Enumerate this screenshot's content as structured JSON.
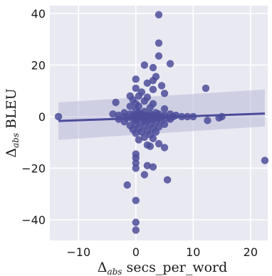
{
  "chart_data": {
    "type": "scatter",
    "xlabel_symbol": "Δ",
    "xlabel_sub": "abs",
    "xlabel": "secs_per_word",
    "ylabel_symbol": "Δ",
    "ylabel_sub": "abs",
    "ylabel": "BLEU",
    "xlim": [
      -15,
      23
    ],
    "ylim": [
      -48,
      43
    ],
    "xticks": [
      -10,
      0,
      10,
      20
    ],
    "xtick_labels": [
      "−10",
      "0",
      "10",
      "20"
    ],
    "yticks": [
      -40,
      -20,
      0,
      20,
      40
    ],
    "ytick_labels": [
      "−40",
      "−20",
      "0",
      "20",
      "40"
    ],
    "grid": true,
    "colors": {
      "point": "#4c4c9a",
      "line": "#4c4c9a",
      "band": "#b9b9d8",
      "plot_bg": "#e9e9f2",
      "grid": "#ffffff"
    },
    "regression": {
      "x": [
        -13.5,
        22.5
      ],
      "y": [
        -1.7,
        1.2
      ],
      "ci_lower": [
        -9.0,
        -3.8
      ],
      "ci_upper": [
        5.5,
        10.5
      ]
    },
    "points": [
      {
        "x": 4.0,
        "y": 39.5
      },
      {
        "x": 4.0,
        "y": 28.5
      },
      {
        "x": 4.0,
        "y": 23.5
      },
      {
        "x": 6.0,
        "y": 20.5
      },
      {
        "x": 1.5,
        "y": 20.0
      },
      {
        "x": 3.0,
        "y": 19.0
      },
      {
        "x": 3.5,
        "y": 15.5
      },
      {
        "x": 0.0,
        "y": 14.5
      },
      {
        "x": 3.0,
        "y": 14.0
      },
      {
        "x": 2.0,
        "y": 13.0
      },
      {
        "x": 4.5,
        "y": 12.0
      },
      {
        "x": 0.0,
        "y": 11.0
      },
      {
        "x": 12.2,
        "y": 11.0
      },
      {
        "x": 3.0,
        "y": 10.5
      },
      {
        "x": 1.0,
        "y": 9.5
      },
      {
        "x": 5.0,
        "y": 9.0
      },
      {
        "x": -1.0,
        "y": 8.0
      },
      {
        "x": 0.5,
        "y": 8.0
      },
      {
        "x": 2.0,
        "y": 7.5
      },
      {
        "x": -0.5,
        "y": 6.5
      },
      {
        "x": 1.5,
        "y": 6.0
      },
      {
        "x": -3.5,
        "y": 5.5
      },
      {
        "x": 0.0,
        "y": 5.0
      },
      {
        "x": 3.0,
        "y": 5.0
      },
      {
        "x": -1.0,
        "y": 4.0
      },
      {
        "x": 0.5,
        "y": 4.0
      },
      {
        "x": 2.5,
        "y": 3.5
      },
      {
        "x": 5.0,
        "y": 3.0
      },
      {
        "x": 0.0,
        "y": 2.5
      },
      {
        "x": 1.5,
        "y": 2.0
      },
      {
        "x": -2.0,
        "y": 1.5
      },
      {
        "x": 0.5,
        "y": 1.5
      },
      {
        "x": 3.5,
        "y": 1.5
      },
      {
        "x": -4.0,
        "y": 1.0
      },
      {
        "x": -1.0,
        "y": 1.0
      },
      {
        "x": 1.0,
        "y": 1.0
      },
      {
        "x": 2.5,
        "y": 1.0
      },
      {
        "x": 4.0,
        "y": 1.0
      },
      {
        "x": 6.0,
        "y": 1.0
      },
      {
        "x": -3.0,
        "y": 0.5
      },
      {
        "x": -0.5,
        "y": 0.5
      },
      {
        "x": 0.5,
        "y": 0.5
      },
      {
        "x": 2.0,
        "y": 0.5
      },
      {
        "x": 3.0,
        "y": 0.5
      },
      {
        "x": 5.0,
        "y": 0.5
      },
      {
        "x": 7.0,
        "y": 0.5
      },
      {
        "x": -13.5,
        "y": 0.0
      },
      {
        "x": -2.0,
        "y": 0.0
      },
      {
        "x": 0.0,
        "y": 0.0
      },
      {
        "x": 1.0,
        "y": 0.0
      },
      {
        "x": 1.8,
        "y": 0.0
      },
      {
        "x": 3.5,
        "y": 0.0
      },
      {
        "x": 4.5,
        "y": 0.0
      },
      {
        "x": 6.5,
        "y": 0.0
      },
      {
        "x": 8.0,
        "y": 0.0
      },
      {
        "x": 9.0,
        "y": 0.0
      },
      {
        "x": 10.0,
        "y": 0.0
      },
      {
        "x": 15.0,
        "y": 0.0
      },
      {
        "x": -1.5,
        "y": -0.5
      },
      {
        "x": 0.5,
        "y": -0.5
      },
      {
        "x": 2.5,
        "y": -0.5
      },
      {
        "x": 4.0,
        "y": -0.5
      },
      {
        "x": 5.5,
        "y": -0.5
      },
      {
        "x": 14.5,
        "y": -0.5
      },
      {
        "x": -3.0,
        "y": -1.0
      },
      {
        "x": -0.5,
        "y": -1.0
      },
      {
        "x": 1.5,
        "y": -1.0
      },
      {
        "x": 3.0,
        "y": -1.0
      },
      {
        "x": 6.0,
        "y": -1.0
      },
      {
        "x": 0.0,
        "y": -1.5
      },
      {
        "x": 2.0,
        "y": -1.5
      },
      {
        "x": 4.5,
        "y": -1.5
      },
      {
        "x": 12.5,
        "y": -1.5
      },
      {
        "x": -2.0,
        "y": -2.0
      },
      {
        "x": 1.0,
        "y": -2.0
      },
      {
        "x": 3.5,
        "y": -2.0
      },
      {
        "x": 0.0,
        "y": -3.0
      },
      {
        "x": 2.5,
        "y": -3.0
      },
      {
        "x": 5.0,
        "y": -3.0
      },
      {
        "x": -1.0,
        "y": -3.5
      },
      {
        "x": 1.5,
        "y": -3.5
      },
      {
        "x": 4.0,
        "y": -4.0
      },
      {
        "x": 0.5,
        "y": -4.5
      },
      {
        "x": 3.0,
        "y": -4.5
      },
      {
        "x": -0.5,
        "y": -5.0
      },
      {
        "x": 2.0,
        "y": -5.5
      },
      {
        "x": 1.0,
        "y": -6.0
      },
      {
        "x": 3.5,
        "y": -6.0
      },
      {
        "x": 0.0,
        "y": -6.5
      },
      {
        "x": 2.5,
        "y": -7.0
      },
      {
        "x": 1.5,
        "y": -8.0
      },
      {
        "x": 3.0,
        "y": -8.5
      },
      {
        "x": 0.5,
        "y": -9.0
      },
      {
        "x": 4.0,
        "y": -10.5
      },
      {
        "x": 2.0,
        "y": -11.0
      },
      {
        "x": 2.5,
        "y": -11.5
      },
      {
        "x": 5.0,
        "y": -12.0
      },
      {
        "x": 0.0,
        "y": -14.5
      },
      {
        "x": 0.0,
        "y": -16.0
      },
      {
        "x": 22.5,
        "y": -17.0
      },
      {
        "x": 0.0,
        "y": -18.0
      },
      {
        "x": 2.0,
        "y": -19.0
      },
      {
        "x": 3.0,
        "y": -19.5
      },
      {
        "x": 0.0,
        "y": -20.0
      },
      {
        "x": 1.5,
        "y": -22.5
      },
      {
        "x": 5.5,
        "y": -24.5
      },
      {
        "x": -1.5,
        "y": -26.5
      },
      {
        "x": 0.0,
        "y": -32.5
      },
      {
        "x": 0.0,
        "y": -41.0
      },
      {
        "x": 0.0,
        "y": -44.0
      }
    ]
  }
}
